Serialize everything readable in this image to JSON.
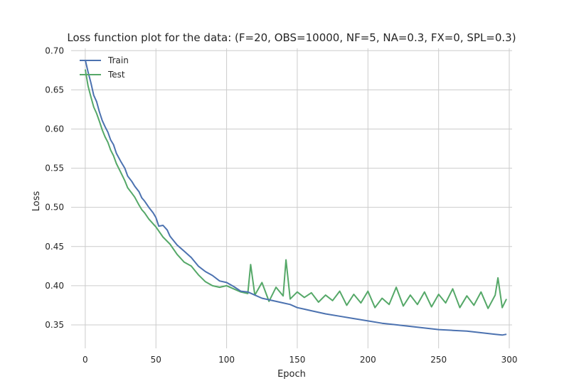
{
  "chart_data": {
    "type": "line",
    "title": "Loss function plot for the data: (F=20, OBS=10000, NF=5, NA=0.3, FX=0, SPL=0.3)",
    "xlabel": "Epoch",
    "ylabel": "Loss",
    "xlim": [
      -10,
      302
    ],
    "ylim": [
      0.32,
      0.703
    ],
    "xticks": [
      0,
      50,
      100,
      150,
      200,
      250,
      300
    ],
    "yticks": [
      0.35,
      0.4,
      0.45,
      0.5,
      0.55,
      0.6,
      0.65,
      0.7
    ],
    "xtick_labels": [
      "0",
      "50",
      "100",
      "150",
      "200",
      "250",
      "300"
    ],
    "ytick_labels": [
      "0.35",
      "0.40",
      "0.45",
      "0.50",
      "0.55",
      "0.60",
      "0.65",
      "0.70"
    ],
    "grid": true,
    "legend_position": "top-left",
    "series": [
      {
        "name": "Train",
        "color": "#4c72b0",
        "x": [
          0,
          2,
          4,
          6,
          8,
          10,
          12,
          14,
          16,
          18,
          20,
          22,
          25,
          28,
          30,
          33,
          35,
          38,
          40,
          42,
          45,
          48,
          50,
          52,
          55,
          58,
          60,
          65,
          70,
          75,
          80,
          85,
          90,
          95,
          100,
          105,
          110,
          115,
          120,
          125,
          130,
          135,
          140,
          145,
          150,
          155,
          160,
          170,
          180,
          190,
          200,
          210,
          220,
          230,
          240,
          250,
          260,
          270,
          280,
          290,
          295,
          298
        ],
        "y": [
          0.688,
          0.673,
          0.659,
          0.643,
          0.635,
          0.622,
          0.611,
          0.603,
          0.596,
          0.586,
          0.58,
          0.569,
          0.559,
          0.55,
          0.54,
          0.533,
          0.527,
          0.52,
          0.512,
          0.508,
          0.5,
          0.493,
          0.487,
          0.476,
          0.477,
          0.471,
          0.463,
          0.452,
          0.444,
          0.436,
          0.425,
          0.418,
          0.413,
          0.406,
          0.404,
          0.399,
          0.393,
          0.392,
          0.388,
          0.384,
          0.382,
          0.38,
          0.378,
          0.376,
          0.372,
          0.37,
          0.368,
          0.364,
          0.361,
          0.358,
          0.355,
          0.352,
          0.35,
          0.348,
          0.346,
          0.344,
          0.343,
          0.342,
          0.34,
          0.338,
          0.337,
          0.338
        ]
      },
      {
        "name": "Test",
        "color": "#55a868",
        "x": [
          0,
          2,
          4,
          6,
          8,
          10,
          12,
          14,
          16,
          18,
          20,
          22,
          25,
          28,
          30,
          33,
          35,
          38,
          40,
          42,
          45,
          50,
          55,
          60,
          65,
          70,
          75,
          80,
          85,
          90,
          95,
          100,
          105,
          110,
          115,
          117,
          120,
          125,
          130,
          135,
          140,
          142,
          145,
          150,
          155,
          160,
          165,
          170,
          175,
          180,
          185,
          190,
          195,
          200,
          205,
          210,
          215,
          220,
          225,
          230,
          235,
          240,
          245,
          250,
          255,
          260,
          265,
          270,
          275,
          280,
          285,
          290,
          292,
          295,
          298
        ],
        "y": [
          0.676,
          0.655,
          0.641,
          0.628,
          0.62,
          0.61,
          0.599,
          0.59,
          0.583,
          0.573,
          0.566,
          0.556,
          0.545,
          0.534,
          0.525,
          0.518,
          0.513,
          0.503,
          0.497,
          0.493,
          0.485,
          0.475,
          0.462,
          0.453,
          0.44,
          0.43,
          0.425,
          0.414,
          0.405,
          0.4,
          0.398,
          0.4,
          0.396,
          0.392,
          0.39,
          0.427,
          0.388,
          0.404,
          0.38,
          0.398,
          0.387,
          0.433,
          0.383,
          0.392,
          0.385,
          0.391,
          0.379,
          0.388,
          0.381,
          0.393,
          0.375,
          0.389,
          0.378,
          0.393,
          0.372,
          0.384,
          0.376,
          0.398,
          0.374,
          0.388,
          0.376,
          0.392,
          0.373,
          0.389,
          0.378,
          0.396,
          0.372,
          0.387,
          0.375,
          0.392,
          0.371,
          0.388,
          0.41,
          0.372,
          0.383
        ]
      }
    ]
  }
}
